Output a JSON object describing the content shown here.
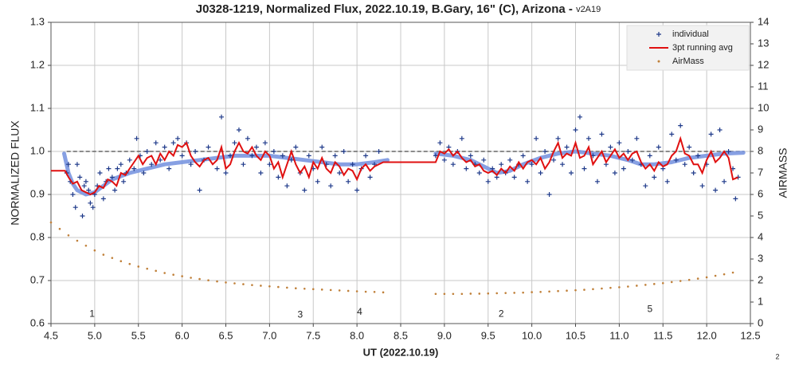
{
  "chart_data": {
    "type": "scatter",
    "title": "J0328-1219, Normalized Flux, 2022.10.19, B.Gary, 16\" (C), Arizona - ",
    "title_version": "v2A19",
    "x_label": "UT (2022.10.19)",
    "y_label": "NORMALIZED FLUX",
    "y2_label": "AIRMASS",
    "page_number": "2",
    "grid": true,
    "legend": "upper right",
    "xlim": [
      4.5,
      12.5
    ],
    "xticks": [
      4.5,
      {
        "value": 5,
        "label": "5.0"
      },
      5.5,
      {
        "value": 6,
        "label": "6.0"
      },
      6.5,
      {
        "value": 7,
        "label": "7.0"
      },
      7.5,
      {
        "value": 8,
        "label": "8.0"
      },
      8.5,
      {
        "value": 9,
        "label": "9.0"
      },
      9.5,
      {
        "value": 10,
        "label": "10.0"
      },
      10.5,
      {
        "value": 11,
        "label": "11.0"
      },
      11.5,
      {
        "value": 12,
        "label": "12.0"
      },
      12.5
    ],
    "ylim": [
      0.6,
      1.3
    ],
    "yticks": [
      0.6,
      0.7,
      0.8,
      0.9,
      {
        "value": 1,
        "label": "1.0"
      },
      1.1,
      1.2,
      1.3
    ],
    "y2lim": [
      0,
      14
    ],
    "y2ticks": [
      0,
      1,
      2,
      3,
      4,
      5,
      6,
      7,
      8,
      9,
      10,
      11,
      12,
      13,
      14
    ],
    "reference_line": {
      "value": 1,
      "color": "#666666"
    },
    "model_curve": {
      "color": "#7a96e0",
      "x": [
        4.65,
        4.7,
        4.75,
        4.8,
        4.9,
        5.0,
        5.1,
        5.2,
        5.4,
        5.6,
        5.8,
        6.0,
        6.2,
        6.4,
        6.6,
        6.8,
        7.0,
        7.2,
        7.4,
        7.6,
        7.8,
        8.0,
        8.2,
        8.35,
        8.5,
        8.9,
        9.1,
        9.3,
        9.45,
        9.6,
        9.75,
        9.9,
        10.1,
        10.3,
        10.5,
        10.7,
        10.9,
        11.1,
        11.25,
        11.4,
        11.6,
        11.8,
        12.0,
        12.2,
        12.42
      ],
      "values": [
        0.995,
        0.95,
        0.925,
        0.91,
        0.9,
        0.905,
        0.92,
        0.935,
        0.95,
        0.96,
        0.97,
        0.975,
        0.98,
        0.985,
        0.99,
        0.99,
        0.99,
        0.985,
        0.98,
        0.975,
        0.97,
        0.97,
        0.975,
        0.98,
        null,
        0.995,
        0.99,
        0.98,
        0.965,
        0.95,
        0.955,
        0.97,
        0.985,
        0.995,
        1.0,
        0.995,
        0.99,
        0.98,
        0.97,
        0.97,
        0.975,
        0.985,
        0.99,
        0.995,
        0.997
      ]
    },
    "series": [
      {
        "name": "individual",
        "color": "#1f3a8a",
        "marker": "plus",
        "x": [
          4.68,
          4.7,
          4.72,
          4.75,
          4.78,
          4.8,
          4.83,
          4.86,
          4.88,
          4.9,
          4.93,
          4.95,
          4.98,
          5.0,
          5.03,
          5.06,
          5.1,
          5.13,
          5.16,
          5.2,
          5.23,
          5.26,
          5.3,
          5.33,
          5.36,
          5.4,
          5.45,
          5.48,
          5.52,
          5.56,
          5.6,
          5.65,
          5.7,
          5.75,
          5.8,
          5.85,
          5.9,
          5.95,
          6.0,
          6.05,
          6.1,
          6.15,
          6.2,
          6.25,
          6.3,
          6.4,
          6.45,
          6.5,
          6.55,
          6.6,
          6.65,
          6.7,
          6.75,
          6.8,
          6.85,
          6.9,
          6.95,
          7.0,
          7.05,
          7.1,
          7.15,
          7.2,
          7.25,
          7.3,
          7.35,
          7.4,
          7.45,
          7.5,
          7.55,
          7.6,
          7.65,
          7.7,
          7.75,
          7.8,
          7.85,
          7.9,
          7.95,
          8.0,
          8.05,
          8.1,
          8.15,
          8.2,
          8.25,
          8.9,
          8.95,
          9.0,
          9.05,
          9.1,
          9.15,
          9.2,
          9.25,
          9.3,
          9.35,
          9.4,
          9.45,
          9.5,
          9.55,
          9.6,
          9.65,
          9.7,
          9.75,
          9.8,
          9.85,
          9.9,
          9.95,
          10.0,
          10.05,
          10.1,
          10.15,
          10.2,
          10.25,
          10.3,
          10.35,
          10.4,
          10.45,
          10.5,
          10.55,
          10.6,
          10.65,
          10.7,
          10.75,
          10.8,
          10.85,
          10.9,
          10.95,
          11.0,
          11.05,
          11.1,
          11.15,
          11.2,
          11.25,
          11.3,
          11.35,
          11.4,
          11.45,
          11.5,
          11.55,
          11.6,
          11.65,
          11.7,
          11.75,
          11.8,
          11.85,
          11.9,
          11.95,
          12.0,
          12.05,
          12.1,
          12.15,
          12.2,
          12.25,
          12.3,
          12.33,
          12.36
        ],
        "values": [
          0.95,
          0.97,
          0.93,
          0.9,
          0.87,
          0.97,
          0.94,
          0.85,
          0.92,
          0.93,
          0.91,
          0.88,
          0.87,
          0.9,
          0.92,
          0.95,
          0.89,
          0.93,
          0.96,
          0.94,
          0.91,
          0.96,
          0.97,
          0.93,
          0.95,
          0.98,
          0.96,
          1.03,
          0.99,
          0.95,
          1.0,
          0.97,
          1.02,
          0.98,
          1.01,
          0.96,
          1.02,
          1.03,
          0.99,
          1.02,
          0.97,
          1.0,
          0.91,
          0.98,
          1.01,
          0.96,
          1.08,
          0.95,
          0.99,
          1.02,
          1.05,
          0.97,
          1.03,
          0.99,
          1.01,
          0.95,
          1.02,
          0.97,
          1.0,
          0.94,
          0.99,
          0.92,
          0.98,
          1.01,
          0.95,
          0.91,
          0.99,
          0.96,
          0.93,
          1.01,
          0.97,
          0.92,
          0.99,
          0.95,
          1.0,
          0.93,
          0.97,
          0.91,
          0.96,
          0.99,
          0.94,
          0.97,
          1.0,
          0.99,
          1.02,
          0.98,
          1.01,
          0.97,
          1.0,
          1.03,
          0.96,
          0.99,
          0.97,
          0.95,
          0.98,
          0.93,
          0.96,
          0.94,
          0.97,
          0.95,
          0.98,
          0.94,
          0.97,
          0.99,
          0.93,
          0.97,
          1.03,
          0.95,
          1.0,
          0.9,
          0.98,
          1.03,
          0.97,
          1.01,
          0.95,
          1.05,
          1.08,
          0.96,
          1.03,
          0.99,
          0.93,
          1.04,
          0.97,
          1.01,
          0.95,
          1.02,
          0.96,
          1.0,
          0.98,
          1.03,
          0.97,
          0.92,
          0.99,
          0.94,
          1.01,
          0.96,
          0.93,
          1.04,
          0.98,
          1.06,
          0.97,
          1.01,
          0.95,
          0.99,
          0.92,
          0.97,
          1.04,
          0.91,
          1.05,
          0.93,
          1.0,
          0.96,
          0.89,
          0.94
        ]
      },
      {
        "name": "3pt running avg",
        "color": "#e01010",
        "marker": "line",
        "x": [
          4.5,
          4.66,
          4.7,
          4.75,
          4.8,
          4.85,
          4.9,
          4.95,
          5.0,
          5.05,
          5.1,
          5.15,
          5.2,
          5.25,
          5.3,
          5.35,
          5.4,
          5.45,
          5.5,
          5.55,
          5.6,
          5.65,
          5.7,
          5.75,
          5.8,
          5.85,
          5.9,
          5.95,
          6.0,
          6.05,
          6.1,
          6.15,
          6.2,
          6.25,
          6.3,
          6.35,
          6.4,
          6.45,
          6.5,
          6.55,
          6.6,
          6.65,
          6.7,
          6.75,
          6.8,
          6.85,
          6.9,
          6.95,
          7.0,
          7.05,
          7.1,
          7.15,
          7.2,
          7.25,
          7.3,
          7.35,
          7.4,
          7.45,
          7.5,
          7.55,
          7.6,
          7.65,
          7.7,
          7.75,
          7.8,
          7.85,
          7.9,
          7.95,
          8.0,
          8.05,
          8.1,
          8.15,
          8.2,
          8.3,
          8.9,
          8.95,
          9.0,
          9.05,
          9.1,
          9.15,
          9.2,
          9.25,
          9.3,
          9.35,
          9.4,
          9.45,
          9.5,
          9.55,
          9.6,
          9.65,
          9.7,
          9.75,
          9.8,
          9.85,
          9.9,
          9.95,
          10.0,
          10.05,
          10.1,
          10.15,
          10.2,
          10.25,
          10.3,
          10.35,
          10.4,
          10.45,
          10.5,
          10.55,
          10.6,
          10.65,
          10.7,
          10.75,
          10.8,
          10.85,
          10.9,
          10.95,
          11.0,
          11.05,
          11.1,
          11.15,
          11.2,
          11.25,
          11.3,
          11.35,
          11.4,
          11.45,
          11.5,
          11.55,
          11.6,
          11.65,
          11.7,
          11.75,
          11.8,
          11.85,
          11.9,
          11.95,
          12.0,
          12.05,
          12.1,
          12.15,
          12.2,
          12.25,
          12.3,
          12.36
        ],
        "values": [
          0.955,
          0.955,
          0.94,
          0.925,
          0.93,
          0.91,
          0.905,
          0.9,
          0.905,
          0.92,
          0.915,
          0.935,
          0.93,
          0.92,
          0.95,
          0.945,
          0.96,
          0.975,
          0.99,
          0.97,
          0.985,
          0.99,
          0.97,
          0.995,
          0.98,
          1.0,
          0.99,
          1.015,
          1.01,
          1.02,
          0.99,
          0.975,
          0.965,
          0.98,
          0.985,
          0.97,
          0.98,
          1.01,
          0.96,
          0.97,
          1.0,
          1.02,
          1.0,
          0.995,
          1.01,
          0.99,
          0.98,
          1.0,
          0.99,
          0.96,
          0.975,
          0.94,
          0.97,
          1.0,
          0.97,
          0.95,
          0.965,
          0.94,
          0.975,
          0.96,
          0.985,
          0.96,
          0.95,
          0.975,
          0.965,
          0.945,
          0.96,
          0.955,
          0.935,
          0.96,
          0.97,
          0.955,
          0.965,
          0.975,
          0.975,
          1.0,
          0.995,
          1.005,
          0.99,
          1.0,
          0.985,
          0.975,
          0.98,
          0.965,
          0.97,
          0.955,
          0.95,
          0.955,
          0.945,
          0.96,
          0.95,
          0.965,
          0.955,
          0.975,
          0.96,
          0.975,
          0.98,
          0.97,
          0.985,
          0.96,
          0.975,
          1.0,
          1.02,
          0.985,
          0.995,
          0.99,
          1.02,
          0.985,
          0.99,
          1.01,
          0.97,
          0.985,
          1.0,
          0.975,
          0.99,
          1.005,
          0.985,
          0.995,
          0.98,
          0.995,
          1.0,
          0.975,
          0.96,
          0.97,
          0.955,
          0.975,
          0.965,
          0.97,
          0.99,
          1.0,
          1.03,
          0.995,
          0.99,
          0.97,
          0.97,
          0.95,
          0.98,
          1.0,
          0.975,
          0.985,
          1.0,
          0.985,
          0.935,
          0.94
        ]
      },
      {
        "name": "AirMass",
        "color": "#c0803a",
        "marker": "dot",
        "axis": "y2",
        "x": [
          4.5,
          4.6,
          4.7,
          4.8,
          4.9,
          5.0,
          5.1,
          5.2,
          5.3,
          5.4,
          5.5,
          5.6,
          5.7,
          5.8,
          5.9,
          6.0,
          6.1,
          6.2,
          6.3,
          6.4,
          6.5,
          6.6,
          6.7,
          6.8,
          6.9,
          7.0,
          7.1,
          7.2,
          7.3,
          7.4,
          7.5,
          7.6,
          7.7,
          7.8,
          7.9,
          8.0,
          8.1,
          8.2,
          8.3,
          8.9,
          9.0,
          9.1,
          9.2,
          9.3,
          9.4,
          9.5,
          9.6,
          9.7,
          9.8,
          9.9,
          10.0,
          10.1,
          10.2,
          10.3,
          10.4,
          10.5,
          10.6,
          10.7,
          10.8,
          10.9,
          11.0,
          11.1,
          11.2,
          11.3,
          11.4,
          11.5,
          11.6,
          11.7,
          11.8,
          11.9,
          12.0,
          12.1,
          12.2,
          12.3
        ],
        "values": [
          4.7,
          4.4,
          4.1,
          3.85,
          3.62,
          3.4,
          3.2,
          3.05,
          2.9,
          2.77,
          2.65,
          2.55,
          2.45,
          2.35,
          2.27,
          2.2,
          2.13,
          2.07,
          2.01,
          1.96,
          1.91,
          1.87,
          1.83,
          1.79,
          1.76,
          1.73,
          1.7,
          1.67,
          1.64,
          1.62,
          1.6,
          1.58,
          1.56,
          1.54,
          1.52,
          1.5,
          1.48,
          1.47,
          1.45,
          1.38,
          1.38,
          1.38,
          1.38,
          1.39,
          1.39,
          1.4,
          1.41,
          1.42,
          1.43,
          1.44,
          1.46,
          1.47,
          1.49,
          1.51,
          1.53,
          1.55,
          1.57,
          1.6,
          1.63,
          1.66,
          1.69,
          1.72,
          1.76,
          1.8,
          1.84,
          1.88,
          1.93,
          1.98,
          2.03,
          2.09,
          2.15,
          2.22,
          2.29,
          2.37
        ]
      }
    ],
    "annotations": [
      {
        "text": "1",
        "x": 4.97,
        "y": 0.622
      },
      {
        "text": "3",
        "x": 7.35,
        "y": 0.62
      },
      {
        "text": "4",
        "x": 8.03,
        "y": 0.626
      },
      {
        "text": "2",
        "x": 9.65,
        "y": 0.622
      },
      {
        "text": "5",
        "x": 11.35,
        "y": 0.633
      }
    ]
  }
}
